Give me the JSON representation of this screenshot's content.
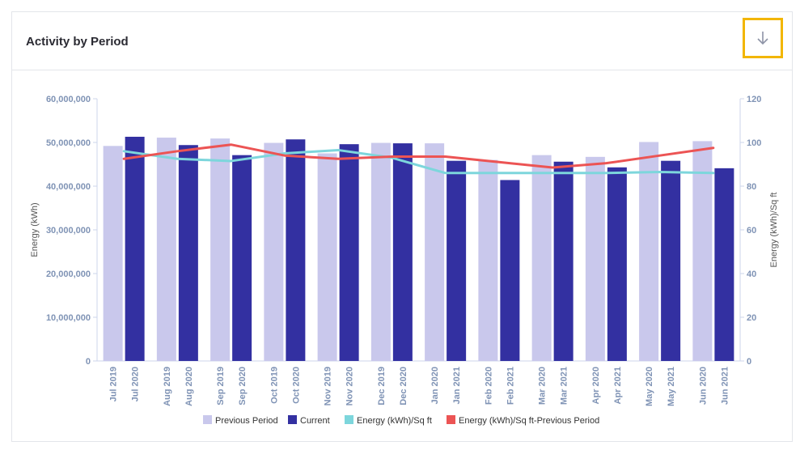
{
  "header": {
    "title": "Activity by Period"
  },
  "toolbar": {
    "download_icon": "arrow-down-icon"
  },
  "colors": {
    "previous": "#c9c8ec",
    "current": "#3330a1",
    "sqft": "#7dd6dc",
    "sqft_prev": "#ec5454",
    "accent": "#f2b600"
  },
  "chart_data": {
    "type": "bar",
    "ylabel": "Energy (kWh)",
    "y2label": "Energy (kWh)/Sq ft",
    "ylim": [
      0,
      60000000
    ],
    "y2lim": [
      0,
      120
    ],
    "y_ticks": [
      "60,000,000",
      "50,000,000",
      "40,000,000",
      "30,000,000",
      "20,000,000",
      "10,000,000",
      "0"
    ],
    "y2_ticks": [
      "120",
      "100",
      "80",
      "60",
      "40",
      "20",
      "0"
    ],
    "grid": false,
    "legend_position": "bottom",
    "groups": [
      {
        "prev_label": "Jul 2019",
        "curr_label": "Jul 2020"
      },
      {
        "prev_label": "Aug 2019",
        "curr_label": "Aug 2020"
      },
      {
        "prev_label": "Sep 2019",
        "curr_label": "Sep 2020"
      },
      {
        "prev_label": "Oct 2019",
        "curr_label": "Oct 2020"
      },
      {
        "prev_label": "Nov 2019",
        "curr_label": "Nov 2020"
      },
      {
        "prev_label": "Dec 2019",
        "curr_label": "Dec 2020"
      },
      {
        "prev_label": "Jan 2020",
        "curr_label": "Jan 2021"
      },
      {
        "prev_label": "Feb 2020",
        "curr_label": "Feb 2021"
      },
      {
        "prev_label": "Mar 2020",
        "curr_label": "Mar 2021"
      },
      {
        "prev_label": "Apr 2020",
        "curr_label": "Apr 2021"
      },
      {
        "prev_label": "May 2020",
        "curr_label": "May 2021"
      },
      {
        "prev_label": "Jun 2020",
        "curr_label": "Jun 2021"
      }
    ],
    "series": [
      {
        "name": "Previous Period",
        "axis": "left",
        "kind": "bar",
        "values": [
          49200000,
          51100000,
          50900000,
          49900000,
          47500000,
          49900000,
          49800000,
          46000000,
          47100000,
          46700000,
          50100000,
          50300000
        ]
      },
      {
        "name": "Current",
        "axis": "left",
        "kind": "bar",
        "values": [
          51300000,
          49400000,
          47100000,
          50700000,
          49600000,
          49800000,
          45800000,
          41400000,
          45600000,
          44300000,
          45800000,
          44100000
        ]
      },
      {
        "name": "Energy (kWh)/Sq ft",
        "axis": "right",
        "kind": "line",
        "values": [
          96,
          92.5,
          91.5,
          95,
          96.5,
          93,
          86,
          86,
          86,
          86,
          86.5,
          86
        ]
      },
      {
        "name": "Energy (kWh)/Sq ft-Previous Period",
        "axis": "right",
        "kind": "line",
        "values": [
          92.5,
          96,
          99,
          94,
          92.5,
          93.5,
          93.5,
          91,
          88.5,
          90.5,
          94,
          97.5
        ]
      }
    ]
  }
}
